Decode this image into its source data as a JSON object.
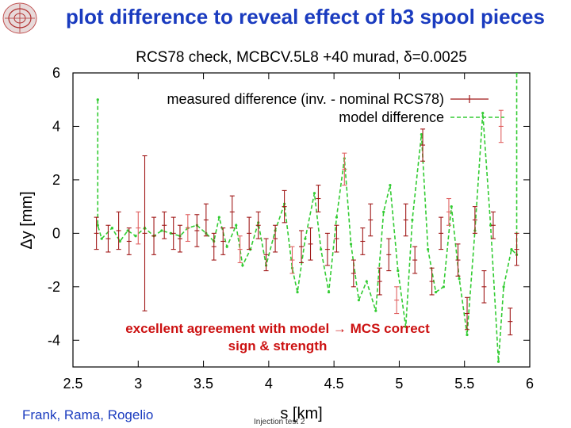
{
  "slide": {
    "title": "plot difference to reveal effect of b3 spool pieces",
    "annotation_line1": "excellent agreement with model → MCS correct",
    "annotation_line2": "sign & strength",
    "footer_left": "Frank, Rama, Rogelio",
    "footer_mid": "Injection test 2"
  },
  "colors": {
    "title": "#1a3bbf",
    "annotation": "#cc1111",
    "measured": "#a01818",
    "measured_light": "#e06060",
    "model": "#33cc33"
  },
  "chart_data": {
    "type": "line",
    "title": "RCS78 check, MCBCV.5L8 +40 murad, δ=0.0025",
    "xlabel": "s [km]",
    "ylabel": "Δy [mm]",
    "xlim": [
      2.5,
      6
    ],
    "ylim": [
      -5,
      6
    ],
    "xticks": [
      "2.5",
      "3",
      "3.5",
      "4",
      "4.5",
      "5",
      "5.5",
      "6"
    ],
    "yticks": [
      "-4",
      "-2",
      "0",
      "2",
      "4",
      "6"
    ],
    "legend_position": "top-right",
    "series": [
      {
        "name": "measured difference (inv. - nominal RCS78)",
        "style": "errorbar",
        "x": [
          2.68,
          2.77,
          2.85,
          2.93,
          3.0,
          3.05,
          3.12,
          3.2,
          3.27,
          3.32,
          3.38,
          3.45,
          3.52,
          3.58,
          3.65,
          3.72,
          3.78,
          3.85,
          3.92,
          3.98,
          4.05,
          4.12,
          4.18,
          4.25,
          4.32,
          4.38,
          4.45,
          4.52,
          4.58,
          4.65,
          4.72,
          4.78,
          4.85,
          4.92,
          4.98,
          5.05,
          5.12,
          5.18,
          5.25,
          5.32,
          5.38,
          5.45,
          5.52,
          5.58,
          5.65,
          5.72,
          5.78,
          5.85,
          5.9
        ],
        "y": [
          0.0,
          -0.2,
          0.1,
          -0.3,
          0.2,
          0.0,
          -0.1,
          0.3,
          0.0,
          -0.2,
          0.2,
          0.1,
          0.5,
          -0.5,
          -0.3,
          0.8,
          -0.6,
          0.0,
          0.3,
          -0.8,
          -0.2,
          1.0,
          -1.0,
          -0.5,
          -0.4,
          1.3,
          -0.6,
          -0.2,
          2.4,
          -1.5,
          -0.3,
          0.5,
          -1.8,
          -0.8,
          -2.5,
          0.5,
          -1.0,
          3.3,
          -1.8,
          0.0,
          0.8,
          -1.0,
          -3.0,
          0.5,
          -2.0,
          0.3,
          4.0,
          -3.3,
          -0.6
        ],
        "yerr": [
          0.6,
          0.5,
          0.7,
          0.5,
          0.6,
          2.9,
          0.7,
          0.5,
          0.6,
          0.5,
          0.5,
          0.6,
          0.6,
          0.5,
          0.5,
          0.6,
          0.5,
          0.6,
          0.5,
          0.6,
          0.5,
          0.6,
          0.5,
          0.6,
          0.6,
          0.5,
          0.6,
          0.5,
          0.6,
          0.5,
          0.5,
          0.6,
          0.5,
          0.6,
          0.5,
          0.6,
          0.5,
          0.6,
          0.5,
          0.6,
          0.5,
          0.6,
          0.6,
          0.5,
          0.6,
          0.5,
          0.6,
          0.5,
          0.6
        ]
      },
      {
        "name": "model difference",
        "style": "dashed-line",
        "x": [
          2.69,
          2.69,
          2.72,
          2.8,
          2.86,
          2.92,
          2.98,
          3.05,
          3.12,
          3.18,
          3.25,
          3.32,
          3.38,
          3.45,
          3.52,
          3.58,
          3.62,
          3.68,
          3.75,
          3.8,
          3.86,
          3.92,
          3.98,
          4.05,
          4.12,
          4.18,
          4.22,
          4.28,
          4.35,
          4.4,
          4.46,
          4.52,
          4.58,
          4.63,
          4.69,
          4.75,
          4.82,
          4.88,
          4.93,
          4.99,
          5.05,
          5.1,
          5.17,
          5.22,
          5.28,
          5.34,
          5.4,
          5.46,
          5.52,
          5.58,
          5.64,
          5.7,
          5.76,
          5.8,
          5.86,
          5.9,
          5.9
        ],
        "y": [
          5.0,
          0.3,
          -0.2,
          0.2,
          -0.3,
          0.1,
          -0.1,
          0.2,
          -0.1,
          0.1,
          0.0,
          -0.1,
          0.2,
          0.3,
          0.0,
          -0.3,
          0.6,
          -0.5,
          0.3,
          -1.2,
          -0.6,
          0.4,
          -1.2,
          0.1,
          1.1,
          -1.3,
          -2.2,
          -0.2,
          1.5,
          -0.6,
          -2.2,
          0.6,
          2.8,
          -0.4,
          -2.5,
          -1.8,
          -2.9,
          0.8,
          1.8,
          -1.4,
          -3.5,
          0.5,
          3.7,
          -0.6,
          -2.2,
          -2.0,
          1.0,
          -1.7,
          -3.8,
          0.1,
          4.5,
          0.3,
          -4.8,
          -2.0,
          -0.6,
          -0.8,
          6.0
        ]
      }
    ]
  }
}
